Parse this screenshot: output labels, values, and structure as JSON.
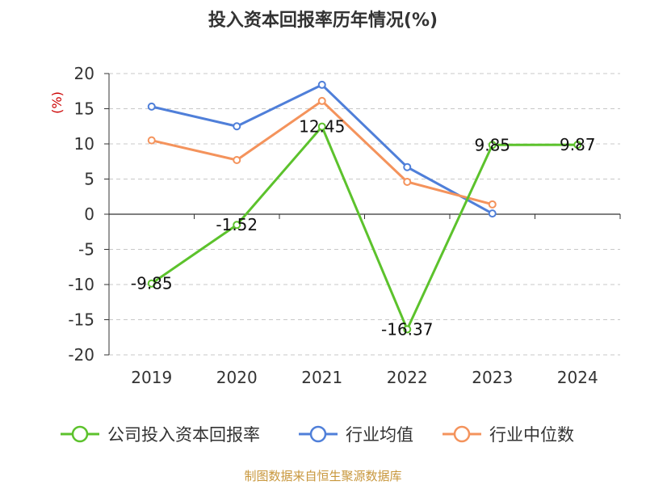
{
  "chart_data": {
    "type": "line",
    "title": "投入资本回报率历年情况(%)",
    "y_unit": "(%)",
    "categories": [
      "2019",
      "2020",
      "2021",
      "2022",
      "2023",
      "2024"
    ],
    "ylim": [
      -20,
      20
    ],
    "yticks": [
      20,
      15,
      10,
      5,
      0,
      -5,
      -10,
      -15,
      -20
    ],
    "grid": true,
    "legend_position": "bottom",
    "series": [
      {
        "name": "公司投入资本回报率",
        "color": "#5cc22c",
        "values": [
          -9.85,
          -1.52,
          12.45,
          -16.37,
          9.85,
          9.87
        ],
        "labels": [
          "-9.85",
          "-1.52",
          "12.45",
          "-16.37",
          "9.85",
          "9.87"
        ]
      },
      {
        "name": "行业均值",
        "color": "#4f7fd9",
        "values": [
          15.3,
          12.5,
          18.4,
          6.7,
          0.1,
          null
        ]
      },
      {
        "name": "行业中位数",
        "color": "#f4935c",
        "values": [
          10.5,
          7.7,
          16.1,
          4.6,
          1.4,
          null
        ]
      }
    ]
  },
  "source_text": "制图数据来自恒生聚源数据库"
}
